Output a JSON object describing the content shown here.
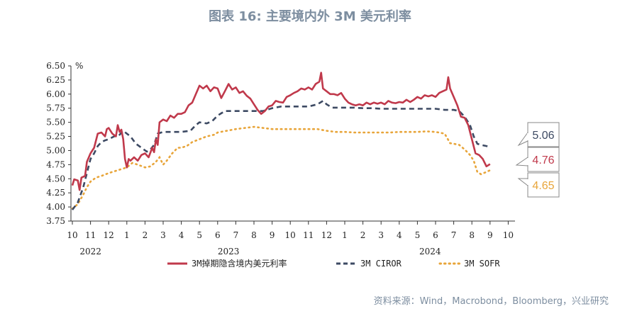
{
  "title": "图表 16: 主要境内外 3M 美元利率",
  "source": "资料来源：Wind，Macrobond，Bloomberg，兴业研究",
  "chart_data": {
    "type": "line",
    "y_unit": "%",
    "ylim": [
      3.75,
      6.5
    ],
    "yticks": [
      "3.75",
      "4.00",
      "4.25",
      "4.50",
      "4.75",
      "5.00",
      "5.25",
      "5.50",
      "5.75",
      "6.00",
      "6.25",
      "6.50"
    ],
    "x_months": [
      "10",
      "11",
      "12",
      "1",
      "2",
      "3",
      "4",
      "5",
      "6",
      "7",
      "8",
      "9",
      "10",
      "11",
      "12",
      "1",
      "2",
      "3",
      "4",
      "5",
      "6",
      "7",
      "8",
      "9",
      "10"
    ],
    "x_years": [
      "2022",
      "2023",
      "2024"
    ],
    "legend": [
      "3M掉期隐含境内美元利率",
      "3M CIROR",
      "3M SOFR"
    ],
    "colors": {
      "domestic": "#c0394b",
      "ciror": "#3d4a63",
      "sofr": "#e8a53a"
    },
    "series": [
      {
        "name": "3M掉期隐含境内美元利率",
        "points": [
          [
            0.0,
            4.38
          ],
          [
            0.1,
            4.49
          ],
          [
            0.3,
            4.47
          ],
          [
            0.4,
            4.3
          ],
          [
            0.5,
            4.52
          ],
          [
            0.7,
            4.55
          ],
          [
            0.8,
            4.8
          ],
          [
            1.0,
            4.95
          ],
          [
            1.2,
            5.05
          ],
          [
            1.4,
            5.3
          ],
          [
            1.6,
            5.32
          ],
          [
            1.8,
            5.25
          ],
          [
            1.9,
            5.38
          ],
          [
            2.0,
            5.4
          ],
          [
            2.2,
            5.3
          ],
          [
            2.4,
            5.25
          ],
          [
            2.5,
            5.45
          ],
          [
            2.6,
            5.33
          ],
          [
            2.7,
            5.37
          ],
          [
            2.8,
            5.2
          ],
          [
            2.9,
            4.85
          ],
          [
            3.0,
            4.7
          ],
          [
            3.1,
            4.85
          ],
          [
            3.2,
            4.82
          ],
          [
            3.4,
            4.88
          ],
          [
            3.6,
            4.82
          ],
          [
            3.8,
            4.92
          ],
          [
            4.0,
            4.95
          ],
          [
            4.2,
            4.88
          ],
          [
            4.4,
            5.05
          ],
          [
            4.5,
            4.97
          ],
          [
            4.6,
            5.2
          ],
          [
            4.7,
            5.1
          ],
          [
            4.8,
            5.5
          ],
          [
            5.0,
            5.55
          ],
          [
            5.2,
            5.52
          ],
          [
            5.4,
            5.62
          ],
          [
            5.6,
            5.58
          ],
          [
            5.8,
            5.65
          ],
          [
            6.0,
            5.65
          ],
          [
            6.2,
            5.68
          ],
          [
            6.4,
            5.8
          ],
          [
            6.6,
            5.85
          ],
          [
            6.8,
            6.0
          ],
          [
            7.0,
            6.15
          ],
          [
            7.2,
            6.1
          ],
          [
            7.4,
            6.15
          ],
          [
            7.6,
            6.05
          ],
          [
            7.8,
            6.12
          ],
          [
            8.0,
            6.1
          ],
          [
            8.2,
            5.93
          ],
          [
            8.4,
            6.05
          ],
          [
            8.6,
            6.18
          ],
          [
            8.8,
            6.08
          ],
          [
            9.0,
            6.12
          ],
          [
            9.2,
            6.02
          ],
          [
            9.4,
            6.05
          ],
          [
            9.6,
            5.97
          ],
          [
            9.8,
            5.92
          ],
          [
            10.0,
            5.82
          ],
          [
            10.2,
            5.72
          ],
          [
            10.4,
            5.65
          ],
          [
            10.6,
            5.7
          ],
          [
            10.8,
            5.78
          ],
          [
            11.0,
            5.8
          ],
          [
            11.2,
            5.88
          ],
          [
            11.4,
            5.86
          ],
          [
            11.6,
            5.85
          ],
          [
            11.8,
            5.95
          ],
          [
            12.0,
            5.98
          ],
          [
            12.2,
            6.02
          ],
          [
            12.4,
            6.05
          ],
          [
            12.6,
            6.1
          ],
          [
            12.8,
            6.08
          ],
          [
            13.0,
            6.12
          ],
          [
            13.2,
            6.08
          ],
          [
            13.4,
            6.18
          ],
          [
            13.6,
            6.22
          ],
          [
            13.7,
            6.38
          ],
          [
            13.8,
            6.1
          ],
          [
            14.0,
            6.05
          ],
          [
            14.2,
            6.0
          ],
          [
            14.4,
            6.0
          ],
          [
            14.6,
            5.98
          ],
          [
            14.8,
            6.02
          ],
          [
            15.0,
            5.92
          ],
          [
            15.2,
            5.85
          ],
          [
            15.4,
            5.82
          ],
          [
            15.6,
            5.8
          ],
          [
            15.8,
            5.82
          ],
          [
            16.0,
            5.8
          ],
          [
            16.2,
            5.85
          ],
          [
            16.4,
            5.82
          ],
          [
            16.6,
            5.85
          ],
          [
            16.8,
            5.83
          ],
          [
            17.0,
            5.85
          ],
          [
            17.2,
            5.82
          ],
          [
            17.4,
            5.88
          ],
          [
            17.6,
            5.85
          ],
          [
            17.8,
            5.84
          ],
          [
            18.0,
            5.86
          ],
          [
            18.2,
            5.85
          ],
          [
            18.4,
            5.9
          ],
          [
            18.6,
            5.86
          ],
          [
            18.8,
            5.9
          ],
          [
            19.0,
            5.95
          ],
          [
            19.2,
            5.92
          ],
          [
            19.4,
            5.98
          ],
          [
            19.6,
            5.96
          ],
          [
            19.8,
            5.98
          ],
          [
            20.0,
            5.95
          ],
          [
            20.2,
            6.02
          ],
          [
            20.4,
            6.05
          ],
          [
            20.6,
            6.08
          ],
          [
            20.7,
            6.3
          ],
          [
            20.8,
            6.1
          ],
          [
            21.0,
            5.95
          ],
          [
            21.2,
            5.8
          ],
          [
            21.4,
            5.6
          ],
          [
            21.6,
            5.58
          ],
          [
            21.8,
            5.45
          ],
          [
            22.0,
            5.2
          ],
          [
            22.2,
            4.95
          ],
          [
            22.4,
            4.92
          ],
          [
            22.6,
            4.85
          ],
          [
            22.8,
            4.72
          ],
          [
            23.0,
            4.76
          ]
        ]
      },
      {
        "name": "3M CIROR",
        "points": [
          [
            0.0,
            3.95
          ],
          [
            0.3,
            4.08
          ],
          [
            0.6,
            4.35
          ],
          [
            0.8,
            4.6
          ],
          [
            1.0,
            4.85
          ],
          [
            1.2,
            4.95
          ],
          [
            1.4,
            5.08
          ],
          [
            1.6,
            5.15
          ],
          [
            1.8,
            5.18
          ],
          [
            2.0,
            5.2
          ],
          [
            2.3,
            5.25
          ],
          [
            2.6,
            5.28
          ],
          [
            2.8,
            5.35
          ],
          [
            3.0,
            5.3
          ],
          [
            3.2,
            5.25
          ],
          [
            3.5,
            5.12
          ],
          [
            3.8,
            5.05
          ],
          [
            4.1,
            4.98
          ],
          [
            4.3,
            5.02
          ],
          [
            4.5,
            5.1
          ],
          [
            4.7,
            5.3
          ],
          [
            5.0,
            5.33
          ],
          [
            5.5,
            5.33
          ],
          [
            6.0,
            5.33
          ],
          [
            6.5,
            5.35
          ],
          [
            6.8,
            5.45
          ],
          [
            7.0,
            5.5
          ],
          [
            7.4,
            5.48
          ],
          [
            7.7,
            5.52
          ],
          [
            8.0,
            5.62
          ],
          [
            8.2,
            5.66
          ],
          [
            8.4,
            5.7
          ],
          [
            9.0,
            5.7
          ],
          [
            9.5,
            5.7
          ],
          [
            10.0,
            5.7
          ],
          [
            10.5,
            5.7
          ],
          [
            11.0,
            5.75
          ],
          [
            11.5,
            5.78
          ],
          [
            12.0,
            5.78
          ],
          [
            12.5,
            5.78
          ],
          [
            13.0,
            5.78
          ],
          [
            13.5,
            5.82
          ],
          [
            13.8,
            5.88
          ],
          [
            14.0,
            5.82
          ],
          [
            14.3,
            5.76
          ],
          [
            14.8,
            5.76
          ],
          [
            15.5,
            5.76
          ],
          [
            16.0,
            5.75
          ],
          [
            16.5,
            5.75
          ],
          [
            17.0,
            5.74
          ],
          [
            17.5,
            5.74
          ],
          [
            18.0,
            5.74
          ],
          [
            18.5,
            5.74
          ],
          [
            19.0,
            5.74
          ],
          [
            19.5,
            5.74
          ],
          [
            20.0,
            5.74
          ],
          [
            20.5,
            5.72
          ],
          [
            21.0,
            5.72
          ],
          [
            21.3,
            5.7
          ],
          [
            21.6,
            5.6
          ],
          [
            21.9,
            5.45
          ],
          [
            22.1,
            5.25
          ],
          [
            22.3,
            5.12
          ],
          [
            22.5,
            5.1
          ],
          [
            22.8,
            5.08
          ],
          [
            23.0,
            5.06
          ]
        ]
      },
      {
        "name": "3M SOFR",
        "points": [
          [
            0.0,
            3.97
          ],
          [
            0.3,
            4.05
          ],
          [
            0.6,
            4.22
          ],
          [
            0.8,
            4.35
          ],
          [
            1.0,
            4.45
          ],
          [
            1.3,
            4.52
          ],
          [
            1.6,
            4.55
          ],
          [
            2.0,
            4.6
          ],
          [
            2.5,
            4.65
          ],
          [
            3.0,
            4.7
          ],
          [
            3.3,
            4.78
          ],
          [
            3.6,
            4.75
          ],
          [
            4.0,
            4.7
          ],
          [
            4.3,
            4.72
          ],
          [
            4.6,
            4.8
          ],
          [
            4.8,
            4.88
          ],
          [
            5.0,
            4.75
          ],
          [
            5.2,
            4.82
          ],
          [
            5.5,
            4.95
          ],
          [
            5.8,
            5.05
          ],
          [
            6.0,
            5.05
          ],
          [
            6.3,
            5.08
          ],
          [
            6.6,
            5.15
          ],
          [
            7.0,
            5.2
          ],
          [
            7.4,
            5.25
          ],
          [
            7.8,
            5.28
          ],
          [
            8.0,
            5.32
          ],
          [
            8.5,
            5.35
          ],
          [
            9.0,
            5.38
          ],
          [
            9.5,
            5.4
          ],
          [
            10.0,
            5.42
          ],
          [
            10.5,
            5.4
          ],
          [
            11.0,
            5.38
          ],
          [
            11.5,
            5.38
          ],
          [
            12.0,
            5.38
          ],
          [
            12.5,
            5.38
          ],
          [
            13.0,
            5.38
          ],
          [
            13.5,
            5.38
          ],
          [
            14.0,
            5.35
          ],
          [
            14.5,
            5.33
          ],
          [
            15.0,
            5.33
          ],
          [
            15.5,
            5.32
          ],
          [
            16.0,
            5.32
          ],
          [
            16.5,
            5.32
          ],
          [
            17.0,
            5.32
          ],
          [
            17.5,
            5.32
          ],
          [
            18.0,
            5.33
          ],
          [
            18.5,
            5.33
          ],
          [
            19.0,
            5.33
          ],
          [
            19.5,
            5.34
          ],
          [
            20.0,
            5.33
          ],
          [
            20.5,
            5.3
          ],
          [
            20.8,
            5.13
          ],
          [
            21.0,
            5.12
          ],
          [
            21.3,
            5.1
          ],
          [
            21.6,
            5.02
          ],
          [
            21.9,
            4.92
          ],
          [
            22.1,
            4.82
          ],
          [
            22.3,
            4.62
          ],
          [
            22.5,
            4.58
          ],
          [
            22.8,
            4.62
          ],
          [
            23.0,
            4.65
          ]
        ]
      }
    ],
    "callouts": [
      {
        "value": "5.06",
        "color": "#3d4a63"
      },
      {
        "value": "4.76",
        "color": "#c0394b"
      },
      {
        "value": "4.65",
        "color": "#e8a53a"
      }
    ]
  }
}
